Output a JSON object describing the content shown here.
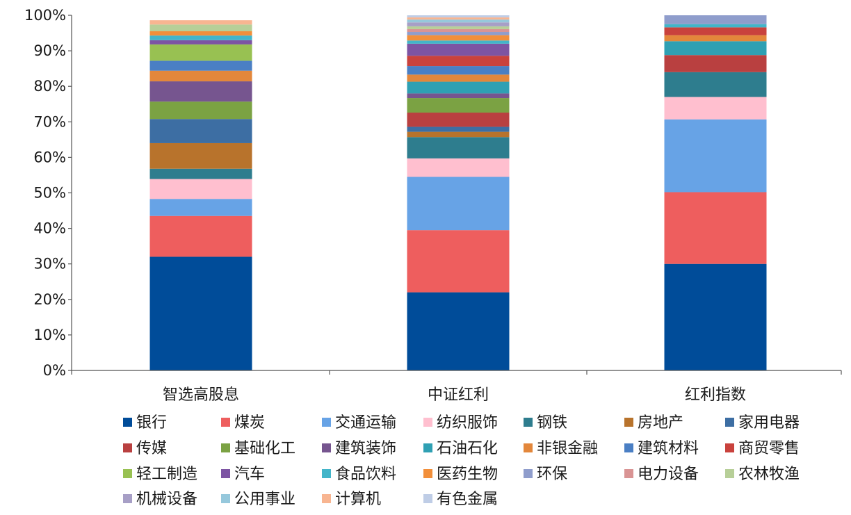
{
  "chart_data": {
    "type": "bar",
    "stacked": true,
    "title": "",
    "xlabel": "",
    "ylabel": "",
    "ylim": [
      0,
      100
    ],
    "y_ticks": [
      "0%",
      "10%",
      "20%",
      "30%",
      "40%",
      "50%",
      "60%",
      "70%",
      "80%",
      "90%",
      "100%"
    ],
    "categories": [
      "智选高股息",
      "中证红利",
      "红利指数"
    ],
    "legend_position": "bottom",
    "grid": false,
    "series": [
      {
        "name": "银行",
        "color": "#004c99",
        "values": [
          32.0,
          22.0,
          30.0
        ]
      },
      {
        "name": "煤炭",
        "color": "#ee5e5e",
        "values": [
          11.5,
          17.5,
          20.2
        ]
      },
      {
        "name": "交通运输",
        "color": "#67a3e6",
        "values": [
          4.8,
          15.0,
          20.5
        ]
      },
      {
        "name": "纺织服饰",
        "color": "#ffbfcf",
        "values": [
          5.6,
          5.2,
          6.3
        ]
      },
      {
        "name": "钢铁",
        "color": "#2e7d8e",
        "values": [
          2.9,
          6.0,
          7.0
        ]
      },
      {
        "name": "房地产",
        "color": "#b8732c",
        "values": [
          7.2,
          1.5,
          0
        ]
      },
      {
        "name": "家用电器",
        "color": "#3d6ea3",
        "values": [
          6.8,
          1.4,
          0
        ]
      },
      {
        "name": "传媒",
        "color": "#b94040",
        "values": [
          0,
          4.0,
          4.8
        ]
      },
      {
        "name": "基础化工",
        "color": "#7ba243",
        "values": [
          4.9,
          4.1,
          0
        ]
      },
      {
        "name": "建筑装饰",
        "color": "#76558f",
        "values": [
          5.7,
          1.3,
          0
        ]
      },
      {
        "name": "石油石化",
        "color": "#2fa0b3",
        "values": [
          0,
          3.3,
          3.9
        ]
      },
      {
        "name": "非银金融",
        "color": "#e3873b",
        "values": [
          3.0,
          2.0,
          1.7
        ]
      },
      {
        "name": "建筑材料",
        "color": "#4a7fc4",
        "values": [
          2.8,
          2.4,
          0
        ]
      },
      {
        "name": "商贸零售",
        "color": "#c9423d",
        "values": [
          0,
          2.9,
          2.2
        ]
      },
      {
        "name": "轻工制造",
        "color": "#98c152",
        "values": [
          4.6,
          0,
          0
        ]
      },
      {
        "name": "汽车",
        "color": "#7d54a3",
        "values": [
          1.2,
          3.4,
          0
        ]
      },
      {
        "name": "食品饮料",
        "color": "#43b5c9",
        "values": [
          1.3,
          0.9,
          0.9
        ]
      },
      {
        "name": "医药生物",
        "color": "#f28f3a",
        "values": [
          1.2,
          1.5,
          0
        ]
      },
      {
        "name": "环保",
        "color": "#8f9dcc",
        "values": [
          0,
          0.9,
          2.5
        ]
      },
      {
        "name": "电力设备",
        "color": "#d99494",
        "values": [
          0,
          0.8,
          0
        ]
      },
      {
        "name": "农林牧渔",
        "color": "#b7cf98",
        "values": [
          1.9,
          0.8,
          0
        ]
      },
      {
        "name": "机械设备",
        "color": "#a79fc6",
        "values": [
          0,
          1.1,
          0
        ]
      },
      {
        "name": "公用事业",
        "color": "#96c8dc",
        "values": [
          0,
          0.8,
          0
        ]
      },
      {
        "name": "计算机",
        "color": "#f8b591",
        "values": [
          1.2,
          0.6,
          0
        ]
      },
      {
        "name": "有色金属",
        "color": "#bfcde6",
        "values": [
          0,
          0.6,
          0
        ]
      }
    ]
  }
}
